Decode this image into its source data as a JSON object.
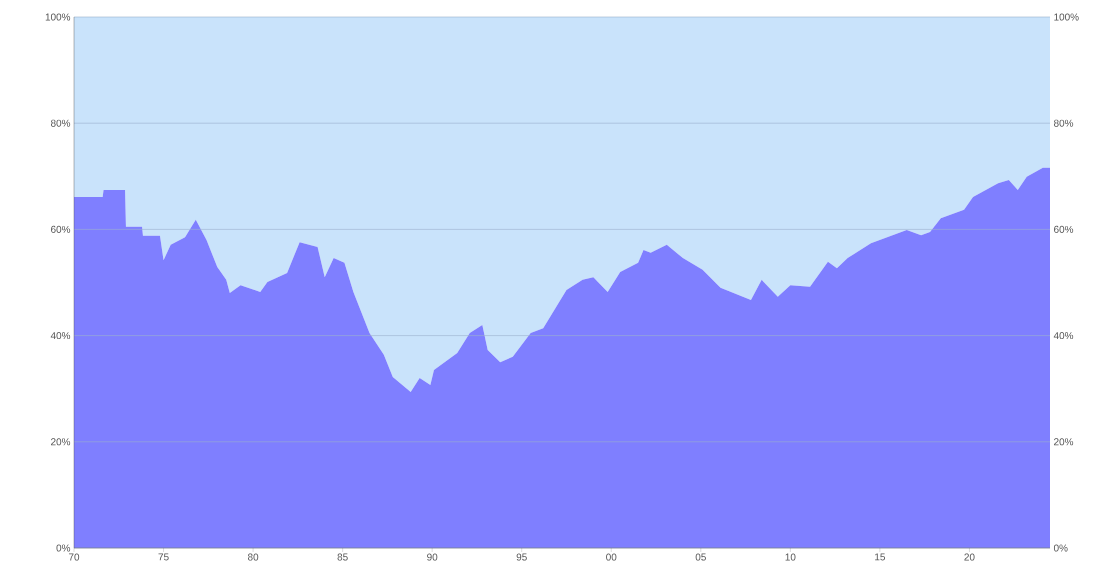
{
  "chart_data": {
    "type": "area",
    "stacked": true,
    "grid": "y",
    "x": [
      1970,
      1971.6,
      1971.65,
      1972.85,
      1972.9,
      1973.8,
      1973.85,
      1974.8,
      1975,
      1975.4,
      1976.2,
      1976.8,
      1977.4,
      1978,
      1978.5,
      1978.7,
      1979.3,
      1980.4,
      1980.8,
      1981.9,
      1982.6,
      1983.6,
      1984,
      1984.5,
      1985.1,
      1985.6,
      1986.5,
      1987.3,
      1987.8,
      1988.8,
      1989.3,
      1989.9,
      1990.1,
      1991.4,
      1992.1,
      1992.8,
      1993.1,
      1993.8,
      1994.5,
      1995.5,
      1996.2,
      1997.5,
      1998.4,
      1999,
      1999.8,
      2000.5,
      2001.5,
      2001.8,
      2002.2,
      2003.1,
      2004,
      2005.1,
      2006.1,
      2007.8,
      2008.4,
      2009.3,
      2010,
      2011.1,
      2012.1,
      2012.6,
      2013.2,
      2014.5,
      2016.5,
      2017.3,
      2017.8,
      2018.4,
      2019.7,
      2020.2,
      2021.6,
      2022.2,
      2022.7,
      2023.2,
      2024.1,
      2024.5
    ],
    "series": [
      {
        "color": "#7f7fff",
        "values": [
          66.1,
          66.1,
          67.4,
          67.4,
          60.5,
          60.5,
          58.8,
          58.8,
          54.2,
          57.1,
          58.5,
          61.8,
          58,
          52.9,
          50.5,
          48,
          49.5,
          48.2,
          50.1,
          51.8,
          57.6,
          56.7,
          51,
          54.6,
          53.7,
          48.2,
          40.5,
          36.4,
          32.2,
          29.4,
          32,
          30.7,
          33.5,
          36.7,
          40.5,
          42,
          37.3,
          35,
          36,
          40.5,
          41.4,
          48.6,
          50.5,
          51,
          48.2,
          52,
          53.7,
          56.1,
          55.6,
          57.1,
          54.6,
          52.4,
          49,
          46.7,
          50.5,
          47.3,
          49.5,
          49.2,
          53.9,
          52.7,
          54.6,
          57.4,
          59.9,
          58.9,
          59.5,
          62.1,
          63.7,
          66.1,
          68.7,
          69.3,
          67.4,
          69.9,
          71.6,
          71.6
        ]
      },
      {
        "color": "#c9e3fb",
        "values": [
          33.9,
          33.9,
          32.6,
          32.6,
          39.5,
          39.5,
          41.2,
          41.2,
          45.8,
          42.9,
          41.5,
          38.2,
          42,
          47.1,
          49.5,
          52,
          50.5,
          51.8,
          49.9,
          48.2,
          42.4,
          43.3,
          49,
          45.4,
          46.3,
          51.8,
          59.5,
          63.6,
          67.8,
          70.6,
          68,
          69.3,
          66.5,
          63.3,
          59.5,
          58,
          62.7,
          65,
          64,
          59.5,
          58.6,
          51.4,
          49.5,
          49,
          51.8,
          48,
          46.3,
          43.9,
          44.4,
          42.9,
          45.4,
          47.6,
          51,
          53.3,
          49.5,
          52.7,
          50.5,
          50.8,
          46.1,
          47.3,
          45.4,
          42.6,
          40.1,
          41.1,
          40.5,
          37.9,
          36.3,
          33.9,
          31.3,
          30.7,
          32.6,
          30.1,
          28.4,
          28.4
        ]
      }
    ],
    "xlim": [
      1970,
      2024.5
    ],
    "xticks": [
      {
        "value": 1970,
        "label": "70"
      },
      {
        "value": 1975,
        "label": "75"
      },
      {
        "value": 1980,
        "label": "80"
      },
      {
        "value": 1985,
        "label": "85"
      },
      {
        "value": 1990,
        "label": "90"
      },
      {
        "value": 1995,
        "label": "95"
      },
      {
        "value": 2000,
        "label": "00"
      },
      {
        "value": 2005,
        "label": "05"
      },
      {
        "value": 2010,
        "label": "10"
      },
      {
        "value": 2015,
        "label": "15"
      },
      {
        "value": 2020,
        "label": "20"
      }
    ],
    "ylim": [
      0,
      100
    ],
    "yticks": [
      {
        "value": 0,
        "label": "0%"
      },
      {
        "value": 20,
        "label": "20%"
      },
      {
        "value": 40,
        "label": "40%"
      },
      {
        "value": 60,
        "label": "60%"
      },
      {
        "value": 80,
        "label": "80%"
      },
      {
        "value": 100,
        "label": "100%"
      }
    ],
    "y2lim": [
      0,
      100
    ],
    "y2ticks": [
      {
        "value": 0,
        "label": "0%"
      },
      {
        "value": 20,
        "label": "20%"
      },
      {
        "value": 40,
        "label": "40%"
      },
      {
        "value": 60,
        "label": "60%"
      },
      {
        "value": 80,
        "label": "80%"
      },
      {
        "value": 100,
        "label": "100%"
      }
    ]
  }
}
